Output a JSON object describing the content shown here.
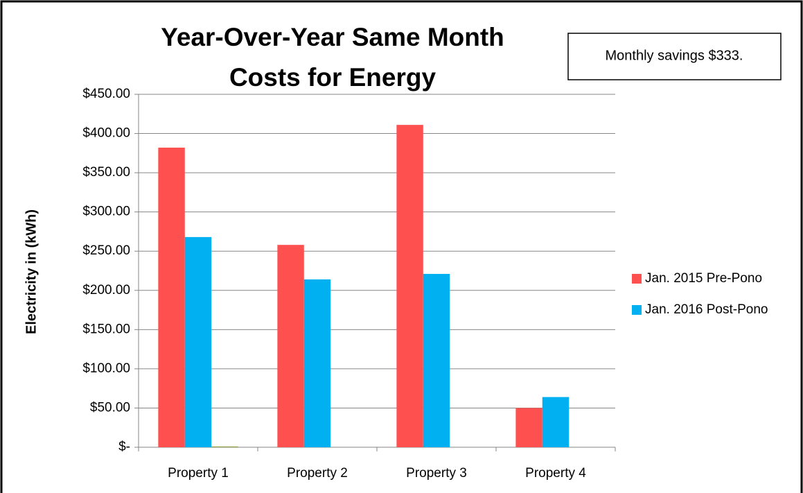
{
  "chart_data": {
    "type": "bar",
    "title": [
      "Year-Over-Year Same Month",
      "Costs for Energy"
    ],
    "ylabel": "Electricity in (kWh)",
    "annotation": "Monthly savings  $333.",
    "categories": [
      "Property 1",
      "Property 2",
      "Property 3",
      "Property 4"
    ],
    "series": [
      {
        "name": "Jan. 2015 Pre-Pono",
        "color": "#ff5050",
        "values": [
          382,
          258,
          411,
          50
        ]
      },
      {
        "name": "Jan. 2016 Post-Pono",
        "color": "#00b0f0",
        "values": [
          268,
          214,
          221,
          64
        ]
      },
      {
        "color": "#92a041",
        "values": [
          1,
          null,
          null,
          null
        ]
      }
    ],
    "ylim": [
      0,
      450
    ],
    "yticks": [
      {
        "value": 0,
        "label": "$-"
      },
      {
        "value": 50,
        "label": "$50.00"
      },
      {
        "value": 100,
        "label": "$100.00"
      },
      {
        "value": 150,
        "label": "$150.00"
      },
      {
        "value": 200,
        "label": "$200.00"
      },
      {
        "value": 250,
        "label": "$250.00"
      },
      {
        "value": 300,
        "label": "$300.00"
      },
      {
        "value": 350,
        "label": "$350.00"
      },
      {
        "value": 400,
        "label": "$400.00"
      },
      {
        "value": 450,
        "label": "$450.00"
      }
    ],
    "grid": true,
    "legend": "right"
  }
}
